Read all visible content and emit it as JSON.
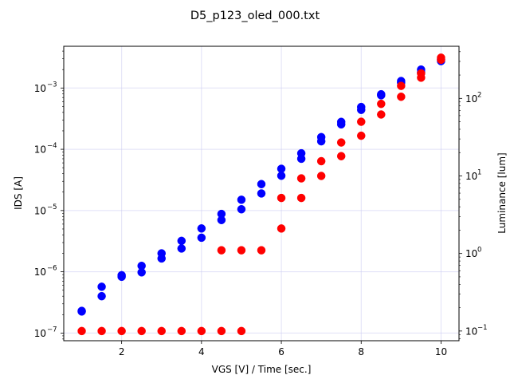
{
  "chart_data": {
    "type": "scatter",
    "title": "D5_p123_oled_000.txt",
    "xlabel": "VGS [V] / Time [sec.]",
    "ylabel_left": "IDS [A]",
    "ylabel_right": "Luminance [lum]",
    "xlim": [
      0.55,
      10.45
    ],
    "ylim_left": [
      7.5e-08,
      0.0048
    ],
    "ylim_right": [
      0.075,
      470
    ],
    "yscale_left": "log",
    "yscale_right": "log",
    "grid": true,
    "x_ticks": [
      2,
      4,
      6,
      8,
      10
    ],
    "y_left_ticks": [
      {
        "value": 1e-07,
        "base": "10",
        "exp": "−7"
      },
      {
        "value": 1e-06,
        "base": "10",
        "exp": "−6"
      },
      {
        "value": 1e-05,
        "base": "10",
        "exp": "−5"
      },
      {
        "value": 0.0001,
        "base": "10",
        "exp": "−4"
      },
      {
        "value": 0.001,
        "base": "10",
        "exp": "−3"
      }
    ],
    "y_right_ticks": [
      {
        "value": 0.1,
        "base": "10",
        "exp": "−1"
      },
      {
        "value": 1,
        "base": "10",
        "exp": "0"
      },
      {
        "value": 10,
        "base": "10",
        "exp": "1"
      },
      {
        "value": 100,
        "base": "10",
        "exp": "2"
      }
    ],
    "series": [
      {
        "axis": "left",
        "color": "#0000ff",
        "points": [
          [
            1.0,
            2.3e-07
          ],
          [
            1.0,
            2.25e-07
          ],
          [
            1.5,
            5.7e-07
          ],
          [
            1.5,
            4e-07
          ],
          [
            2.0,
            8.8e-07
          ],
          [
            2.0,
            8.3e-07
          ],
          [
            2.5,
            1.25e-06
          ],
          [
            2.5,
            9.8e-07
          ],
          [
            3.0,
            2e-06
          ],
          [
            3.0,
            1.65e-06
          ],
          [
            3.5,
            3.2e-06
          ],
          [
            3.5,
            2.4e-06
          ],
          [
            4.0,
            5.1e-06
          ],
          [
            4.0,
            3.6e-06
          ],
          [
            4.5,
            8.8e-06
          ],
          [
            4.5,
            7e-06
          ],
          [
            5.0,
            1.5e-05
          ],
          [
            5.0,
            1.05e-05
          ],
          [
            5.5,
            2.7e-05
          ],
          [
            5.5,
            1.9e-05
          ],
          [
            6.0,
            4.8e-05
          ],
          [
            6.0,
            3.7e-05
          ],
          [
            6.5,
            8.6e-05
          ],
          [
            6.5,
            7e-05
          ],
          [
            7.0,
            0.000158
          ],
          [
            7.0,
            0.000135
          ],
          [
            7.5,
            0.00028
          ],
          [
            7.5,
            0.000255
          ],
          [
            8.0,
            0.00049
          ],
          [
            8.0,
            0.00044
          ],
          [
            8.5,
            0.00079
          ],
          [
            8.5,
            0.00076
          ],
          [
            9.0,
            0.0013
          ],
          [
            9.0,
            0.00122
          ],
          [
            9.5,
            0.002
          ],
          [
            9.5,
            0.0018
          ],
          [
            10.0,
            0.00295
          ],
          [
            10.0,
            0.00275
          ]
        ]
      },
      {
        "axis": "right",
        "color": "#ff0000",
        "points": [
          [
            1.0,
            0.1
          ],
          [
            1.5,
            0.1
          ],
          [
            2.0,
            0.1
          ],
          [
            2.5,
            0.1
          ],
          [
            3.0,
            0.1
          ],
          [
            3.5,
            0.1
          ],
          [
            4.0,
            0.1
          ],
          [
            4.5,
            0.1
          ],
          [
            5.0,
            0.1
          ],
          [
            4.5,
            1.1
          ],
          [
            5.0,
            1.1
          ],
          [
            5.5,
            1.1
          ],
          [
            6.0,
            2.1
          ],
          [
            6.0,
            5.2
          ],
          [
            6.5,
            5.2
          ],
          [
            6.5,
            9.3
          ],
          [
            7.0,
            10.0
          ],
          [
            7.0,
            15.5
          ],
          [
            7.5,
            18.0
          ],
          [
            7.5,
            27.0
          ],
          [
            8.0,
            33.0
          ],
          [
            8.0,
            50.0
          ],
          [
            8.5,
            62.0
          ],
          [
            8.5,
            85.0
          ],
          [
            9.0,
            105.0
          ],
          [
            9.0,
            145.0
          ],
          [
            9.5,
            185.0
          ],
          [
            9.5,
            210.0
          ],
          [
            10.0,
            315.0
          ],
          [
            10.0,
            335.0
          ]
        ]
      }
    ],
    "axis_colors": {
      "xlabel": "#0000ff",
      "ylabel_left": "#0000ff",
      "ylabel_right": "#ff0000"
    }
  }
}
